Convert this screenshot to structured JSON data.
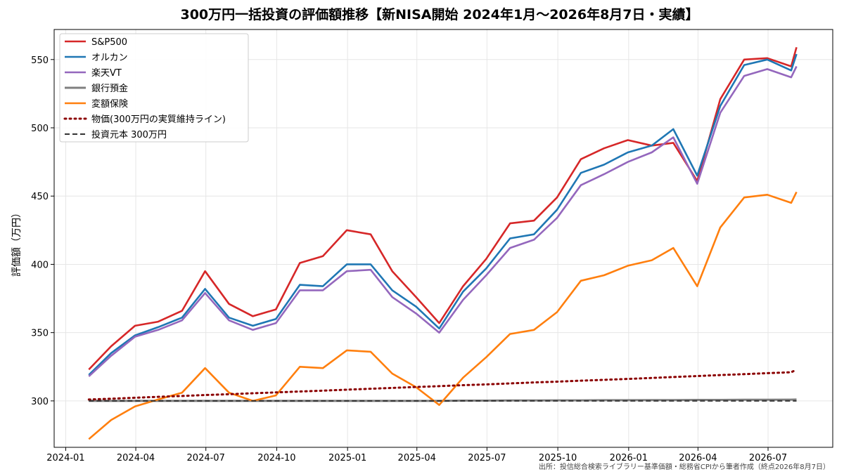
{
  "chart_data": {
    "type": "line",
    "title": "300万円一括投資の評価額推移【新NISA開始 2024年1月〜2026年8月7日・実績】",
    "xlabel": "",
    "ylabel": "評価額（万円）",
    "source": "出所：投信総合検索ライブラリー基準価額・総務省CPIから筆者作成（終点2026年8月7日）",
    "xlim": [
      "2023-12-17",
      "2026-09-23"
    ],
    "ylim": [
      266,
      572
    ],
    "x_ticks": [
      "2024-01-01",
      "2024-04-01",
      "2024-07-01",
      "2024-10-01",
      "2025-01-01",
      "2025-04-01",
      "2025-07-01",
      "2025-10-01",
      "2026-01-01",
      "2026-04-01",
      "2026-07-01"
    ],
    "x_tick_labels": [
      "2024-01",
      "2024-04",
      "2024-07",
      "2024-10",
      "2025-01",
      "2025-04",
      "2025-07",
      "2025-10",
      "2026-01",
      "2026-04",
      "2026-07"
    ],
    "y_ticks": [
      300,
      350,
      400,
      450,
      500,
      550
    ],
    "grid": true,
    "legend_position": "top-left",
    "x": [
      "2024-01-31",
      "2024-02-29",
      "2024-03-31",
      "2024-04-30",
      "2024-05-31",
      "2024-06-30",
      "2024-07-31",
      "2024-08-31",
      "2024-09-30",
      "2024-10-31",
      "2024-11-30",
      "2024-12-31",
      "2025-01-31",
      "2025-02-28",
      "2025-03-31",
      "2025-04-30",
      "2025-05-31",
      "2025-06-30",
      "2025-07-31",
      "2025-08-31",
      "2025-09-30",
      "2025-10-31",
      "2025-11-30",
      "2025-12-31",
      "2026-01-31",
      "2026-02-28",
      "2026-03-31",
      "2026-04-30",
      "2026-05-31",
      "2026-06-30",
      "2026-07-31",
      "2026-08-07"
    ],
    "series": [
      {
        "name": "S&P500",
        "color": "#d62728",
        "style": "solid",
        "width": 2.6,
        "values": [
          323,
          340,
          355,
          358,
          366,
          395,
          371,
          362,
          367,
          401,
          406,
          425,
          422,
          395,
          376,
          357,
          384,
          404,
          430,
          432,
          449,
          477,
          485,
          491,
          487,
          489,
          461,
          521,
          550,
          551,
          545,
          559
        ]
      },
      {
        "name": "オルカン",
        "color": "#1f77b4",
        "style": "solid",
        "width": 2.6,
        "values": [
          319,
          335,
          348,
          354,
          361,
          382,
          361,
          355,
          360,
          385,
          384,
          400,
          400,
          381,
          369,
          353,
          380,
          397,
          419,
          422,
          440,
          467,
          473,
          482,
          487,
          499,
          465,
          516,
          546,
          550,
          542,
          554
        ]
      },
      {
        "name": "楽天VT",
        "color": "#9467bd",
        "style": "solid",
        "width": 2.6,
        "values": [
          318,
          333,
          347,
          352,
          359,
          379,
          359,
          352,
          357,
          381,
          381,
          395,
          396,
          376,
          364,
          350,
          374,
          392,
          412,
          418,
          434,
          458,
          466,
          475,
          482,
          493,
          459,
          511,
          538,
          543,
          537,
          545
        ]
      },
      {
        "name": "銀行預金",
        "color": "#7f7f7f",
        "style": "solid",
        "width": 3,
        "values": [
          300,
          300,
          300,
          300,
          300,
          300,
          300,
          300,
          300,
          300,
          300,
          300,
          300,
          300,
          300,
          300,
          300.2,
          300.2,
          300.3,
          300.3,
          300.4,
          300.4,
          300.5,
          300.5,
          300.6,
          300.6,
          300.7,
          300.7,
          300.8,
          300.8,
          300.9,
          301
        ]
      },
      {
        "name": "変額保険",
        "color": "#ff7f0e",
        "style": "solid",
        "width": 2.6,
        "values": [
          272,
          286,
          296,
          301,
          306,
          324,
          306,
          300,
          304,
          325,
          324,
          337,
          336,
          320,
          310,
          297,
          317,
          332,
          349,
          352,
          365,
          388,
          392,
          399,
          403,
          412,
          384,
          427,
          449,
          451,
          445,
          453
        ]
      },
      {
        "name": "物価(300万円の実質維持ライン)",
        "color": "#8b0000",
        "style": "dotted",
        "width": 3,
        "values": [
          301,
          301.6,
          302.3,
          303,
          303.6,
          304.3,
          304.9,
          305.6,
          306.2,
          306.9,
          307.5,
          308.2,
          308.9,
          309.5,
          310.2,
          310.8,
          311.5,
          312.1,
          312.8,
          313.5,
          314.1,
          314.8,
          315.4,
          316.1,
          316.8,
          317.5,
          318.2,
          318.9,
          319.6,
          320.3,
          321,
          322.9
        ]
      },
      {
        "name": "投資元本 300万円",
        "color": "#333333",
        "style": "dashed",
        "width": 2,
        "values": [
          300,
          300,
          300,
          300,
          300,
          300,
          300,
          300,
          300,
          300,
          300,
          300,
          300,
          300,
          300,
          300,
          300,
          300,
          300,
          300,
          300,
          300,
          300,
          300,
          300,
          300,
          300,
          300,
          300,
          300,
          300,
          300
        ]
      }
    ]
  }
}
